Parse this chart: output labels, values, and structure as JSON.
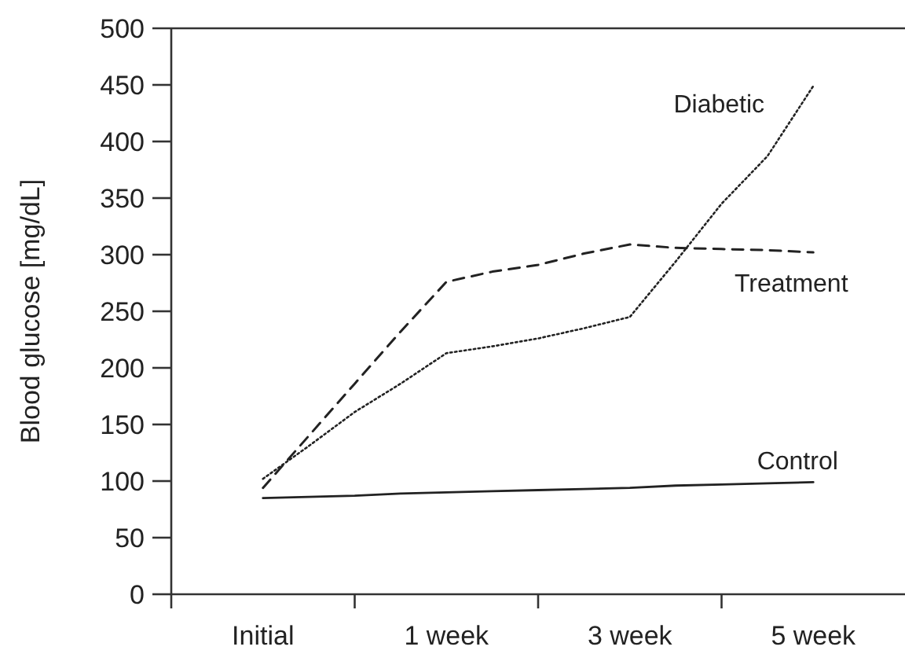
{
  "chart_data": {
    "type": "line",
    "ylabel": "Blood glucose [mg/dL]",
    "categories": [
      "Initial",
      null,
      null,
      null,
      "1 week",
      null,
      null,
      null,
      "3 week",
      null,
      null,
      null,
      "5 week"
    ],
    "ylim": [
      0,
      500
    ],
    "yticks": [
      0,
      50,
      100,
      150,
      200,
      250,
      300,
      350,
      400,
      450,
      500
    ],
    "series": [
      {
        "name": "Control",
        "color": "#222222",
        "line_style": "solid",
        "values": [
          85,
          86,
          87,
          89,
          90,
          91,
          92,
          93,
          94,
          96,
          97,
          98,
          99
        ]
      },
      {
        "name": "Treatment",
        "color": "#222222",
        "line_style": "dashed",
        "values": [
          94,
          140,
          186,
          232,
          276,
          285,
          291,
          301,
          309,
          306,
          305,
          304,
          302
        ]
      },
      {
        "name": "Diabetic",
        "color": "#222222",
        "line_style": "dotted",
        "values": [
          102,
          131,
          161,
          186,
          213,
          219,
          226,
          235,
          245,
          294,
          345,
          387,
          449
        ]
      }
    ],
    "grid": false,
    "marker": "none"
  }
}
